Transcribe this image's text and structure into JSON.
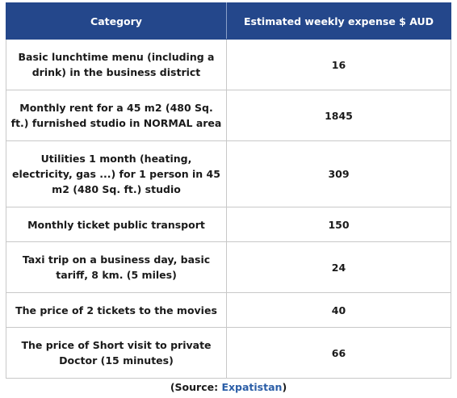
{
  "table": {
    "headers": [
      "Category",
      "Estimated weekly expense $ AUD"
    ],
    "rows": [
      {
        "category": "Basic lunchtime menu (including a drink) in the business district",
        "value": "16"
      },
      {
        "category": "Monthly rent for a 45 m2 (480 Sq. ft.) furnished studio in NORMAL area",
        "value": "1845"
      },
      {
        "category": "Utilities 1 month (heating, electricity, gas ...) for 1 person in 45 m2 (480 Sq. ft.) studio",
        "value": "309"
      },
      {
        "category": "Monthly ticket public transport",
        "value": "150"
      },
      {
        "category": "Taxi trip on a business day, basic tariff, 8 km. (5 miles)",
        "value": "24"
      },
      {
        "category": "The price of 2 tickets to the movies",
        "value": "40"
      },
      {
        "category": "The price of Short visit to private Doctor (15 minutes)",
        "value": "66"
      }
    ]
  },
  "source": {
    "open": "(Source: ",
    "link": "Expatistan",
    "close": ")"
  },
  "colors": {
    "header_bg": "#24478b",
    "header_text": "#ffffff",
    "link": "#2b5ea7"
  }
}
